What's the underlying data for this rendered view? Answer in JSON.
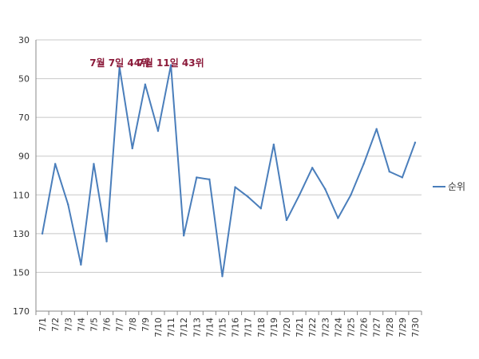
{
  "chart_data": {
    "type": "line",
    "categories": [
      "7/1",
      "7/2",
      "7/3",
      "7/4",
      "7/5",
      "7/6",
      "7/7",
      "7/8",
      "7/9",
      "7/10",
      "7/11",
      "7/12",
      "7/13",
      "7/14",
      "7/15",
      "7/16",
      "7/17",
      "7/18",
      "7/19",
      "7/20",
      "7/21",
      "7/22",
      "7/23",
      "7/24",
      "7/25",
      "7/26",
      "7/27",
      "7/28",
      "7/29",
      "7/30"
    ],
    "series": [
      {
        "name": "순위",
        "values": [
          130,
          94,
          115,
          146,
          94,
          134,
          44,
          86,
          53,
          77,
          43,
          131,
          101,
          102,
          152,
          106,
          111,
          117,
          84,
          123,
          110,
          96,
          107,
          122,
          110,
          94,
          76,
          98,
          101,
          83
        ]
      }
    ],
    "y_reversed": true,
    "ylim": [
      30,
      170
    ],
    "yticks": [
      30,
      50,
      70,
      90,
      110,
      130,
      150,
      170
    ],
    "grid": true,
    "legend": "right",
    "annotations": [
      {
        "text": "7월 7일 44위",
        "category": "7/7"
      },
      {
        "text": "7월 11일 43위",
        "category": "7/11"
      }
    ],
    "colors": {
      "line": "#4a7ebb",
      "grid": "#c8c8c8",
      "annotation": "#8b1a3a"
    }
  }
}
